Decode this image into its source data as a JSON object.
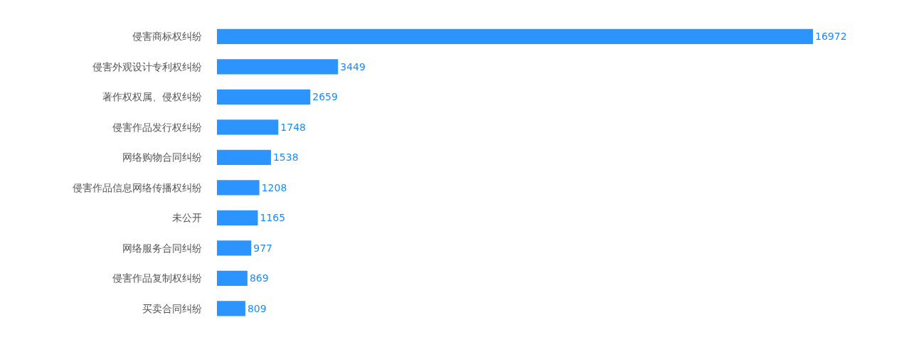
{
  "chart_data": {
    "type": "bar",
    "orientation": "horizontal",
    "categories": [
      "侵害商标权纠纷",
      "侵害外观设计专利权纠纷",
      "著作权权属、侵权纠纷",
      "侵害作品发行权纠纷",
      "网络购物合同纠纷",
      "侵害作品信息网络传播权纠纷",
      "未公开",
      "网络服务合同纠纷",
      "侵害作品复制权纠纷",
      "买卖合同纠纷"
    ],
    "values": [
      16972,
      3449,
      2659,
      1748,
      1538,
      1208,
      1165,
      977,
      869,
      809
    ],
    "color": "#2b94ff",
    "data_labels": true,
    "grid": false,
    "legend": false
  }
}
